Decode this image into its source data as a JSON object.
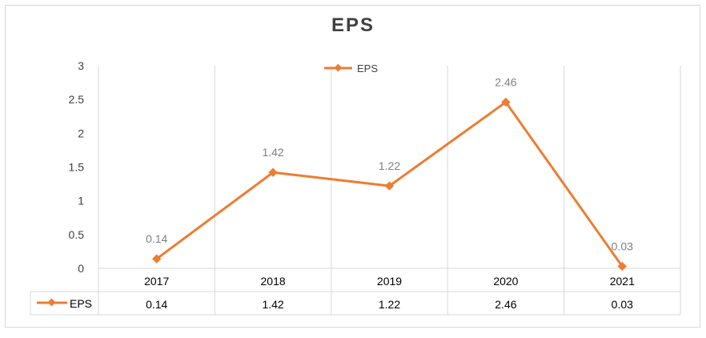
{
  "chart_data": {
    "type": "line",
    "title": "EPS",
    "categories": [
      "2017",
      "2018",
      "2019",
      "2020",
      "2021"
    ],
    "series": [
      {
        "name": "EPS",
        "values": [
          0.14,
          1.42,
          1.22,
          2.46,
          0.03
        ],
        "color": "#ed7d31"
      }
    ],
    "data_labels": [
      "0.14",
      "1.42",
      "1.22",
      "2.46",
      "0.03"
    ],
    "yticks": [
      "0",
      "0.5",
      "1",
      "1.5",
      "2",
      "2.5",
      "3"
    ],
    "ylim": [
      0,
      3
    ],
    "grid": "vertical",
    "legend": "top-center",
    "data_table": {
      "row_label": "EPS",
      "cells": [
        "0.14",
        "1.42",
        "1.22",
        "2.46",
        "0.03"
      ]
    }
  }
}
